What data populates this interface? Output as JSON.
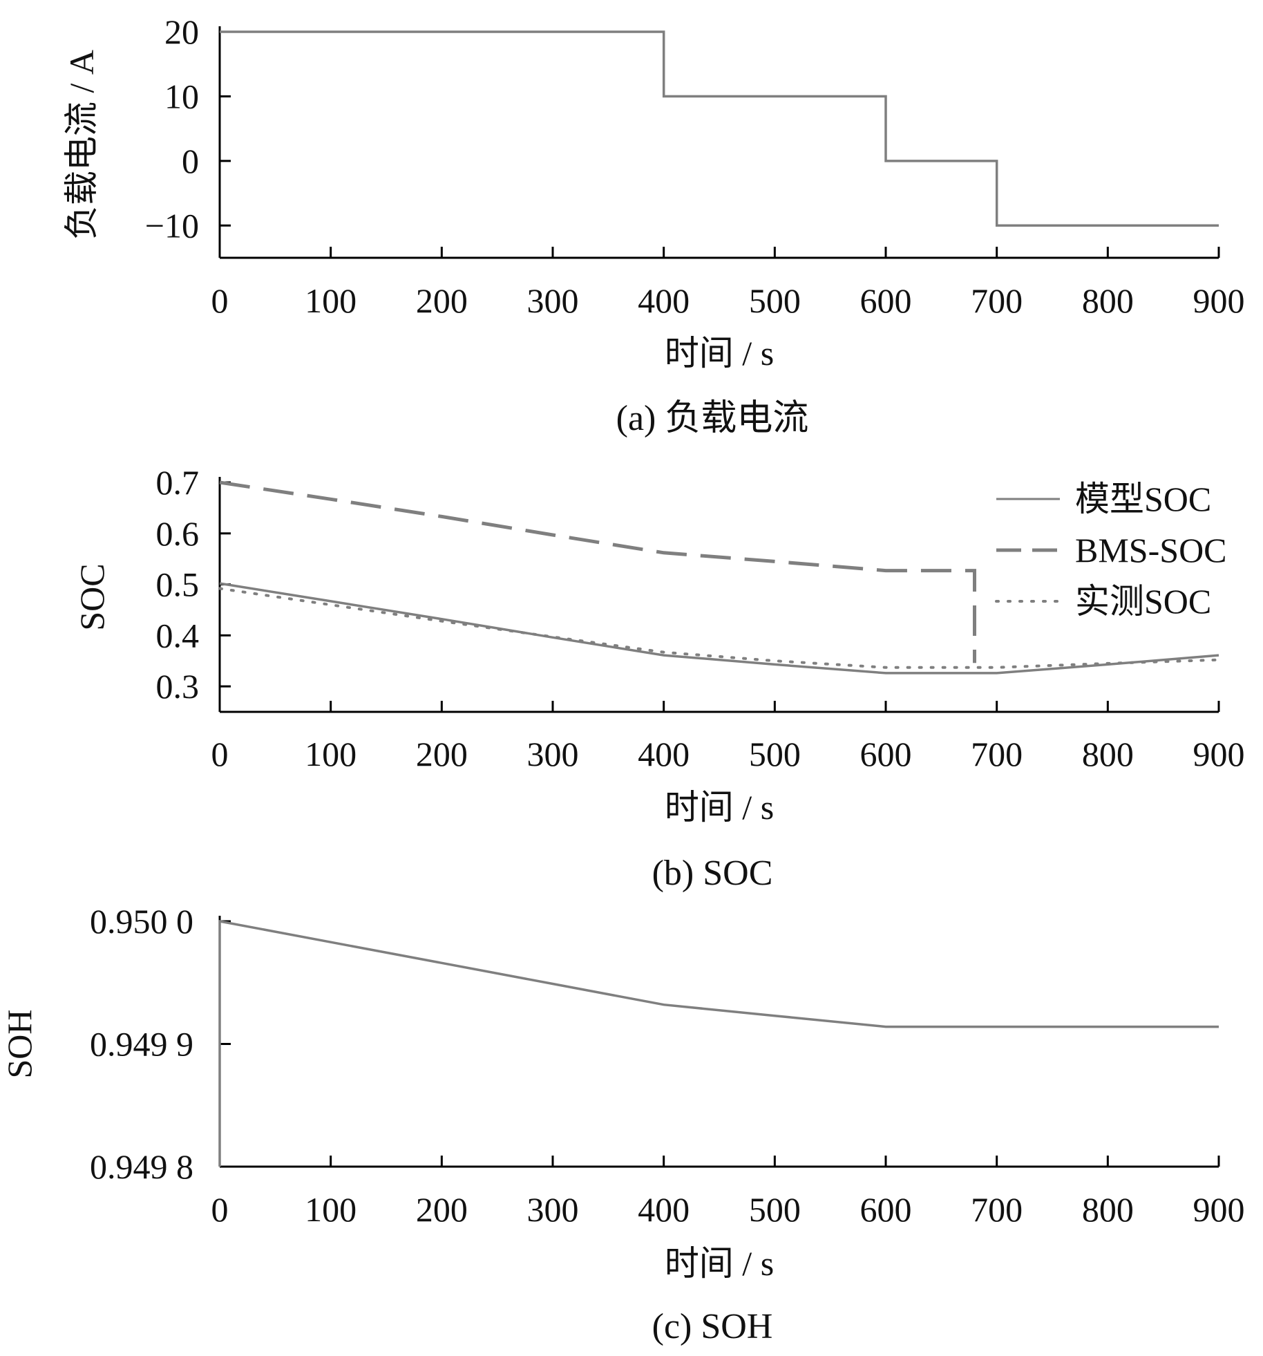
{
  "colors": {
    "axis": "#000000",
    "series": "#7f7f7f",
    "text": "#111111"
  },
  "chart_data": [
    {
      "id": "a",
      "type": "line",
      "caption": "(a)  负载电流",
      "xlabel": "时间 / s",
      "ylabel": "负载电流 / A",
      "xlim": [
        0,
        900
      ],
      "ylim": [
        -15,
        20
      ],
      "xticks": [
        0,
        100,
        200,
        300,
        400,
        500,
        600,
        700,
        800,
        900
      ],
      "xtick_labels": [
        "0",
        "100",
        "200",
        "300",
        "400",
        "500",
        "600",
        "700",
        "800",
        "900"
      ],
      "yticks": [
        20,
        10,
        0,
        -10
      ],
      "ytick_labels": [
        "20",
        "10",
        "0",
        "−10"
      ],
      "legend": null,
      "series": [
        {
          "style": "solid",
          "x": [
            0,
            400,
            400,
            600,
            600,
            700,
            700,
            900
          ],
          "y": [
            20,
            20,
            10,
            10,
            0,
            0,
            -10,
            -10
          ]
        }
      ]
    },
    {
      "id": "b",
      "type": "line",
      "caption": "(b)  SOC",
      "xlabel": "时间 / s",
      "ylabel": "SOC",
      "xlim": [
        0,
        900
      ],
      "ylim": [
        0.25,
        0.7
      ],
      "xticks": [
        0,
        100,
        200,
        300,
        400,
        500,
        600,
        700,
        800,
        900
      ],
      "xtick_labels": [
        "0",
        "100",
        "200",
        "300",
        "400",
        "500",
        "600",
        "700",
        "800",
        "900"
      ],
      "yticks": [
        0.7,
        0.6,
        0.5,
        0.4,
        0.3
      ],
      "ytick_labels": [
        "0.7",
        "0.6",
        "0.5",
        "0.4",
        "0.3"
      ],
      "legend": "top-right",
      "series": [
        {
          "name": "模型SOC",
          "style": "solid",
          "x": [
            0,
            100,
            200,
            300,
            400,
            500,
            600,
            650,
            700,
            800,
            900
          ],
          "y": [
            0.502,
            0.467,
            0.432,
            0.396,
            0.361,
            0.343,
            0.326,
            0.326,
            0.326,
            0.343,
            0.361
          ]
        },
        {
          "name": "BMS-SOC",
          "style": "dashed",
          "x": [
            0,
            100,
            200,
            300,
            400,
            500,
            600,
            680,
            680
          ],
          "y": [
            0.7,
            0.667,
            0.633,
            0.597,
            0.562,
            0.545,
            0.527,
            0.527,
            0.346
          ]
        },
        {
          "name": "实测SOC",
          "style": "dotted",
          "x": [
            0,
            100,
            200,
            300,
            400,
            500,
            600,
            700,
            800,
            900
          ],
          "y": [
            0.492,
            0.46,
            0.428,
            0.397,
            0.367,
            0.35,
            0.337,
            0.337,
            0.345,
            0.352
          ]
        }
      ]
    },
    {
      "id": "c",
      "type": "line",
      "caption": "(c)  SOH",
      "xlabel": "时间 / s",
      "ylabel": "SOH",
      "xlim": [
        0,
        900
      ],
      "ylim": [
        0.9498,
        0.95
      ],
      "xticks": [
        0,
        100,
        200,
        300,
        400,
        500,
        600,
        700,
        800,
        900
      ],
      "xtick_labels": [
        "0",
        "100",
        "200",
        "300",
        "400",
        "500",
        "600",
        "700",
        "800",
        "900"
      ],
      "yticks": [
        0.95,
        0.9499,
        0.9498
      ],
      "ytick_labels": [
        "0.950 0",
        "0.949 9",
        "0.949 8"
      ],
      "legend": null,
      "series": [
        {
          "style": "solid",
          "x": [
            0,
            0,
            100,
            200,
            300,
            400,
            500,
            600,
            700,
            800,
            900
          ],
          "y": [
            0.9498,
            0.95,
            0.949983,
            0.949966,
            0.949949,
            0.949932,
            0.949923,
            0.949914,
            0.949914,
            0.949914,
            0.949914
          ]
        }
      ]
    }
  ]
}
